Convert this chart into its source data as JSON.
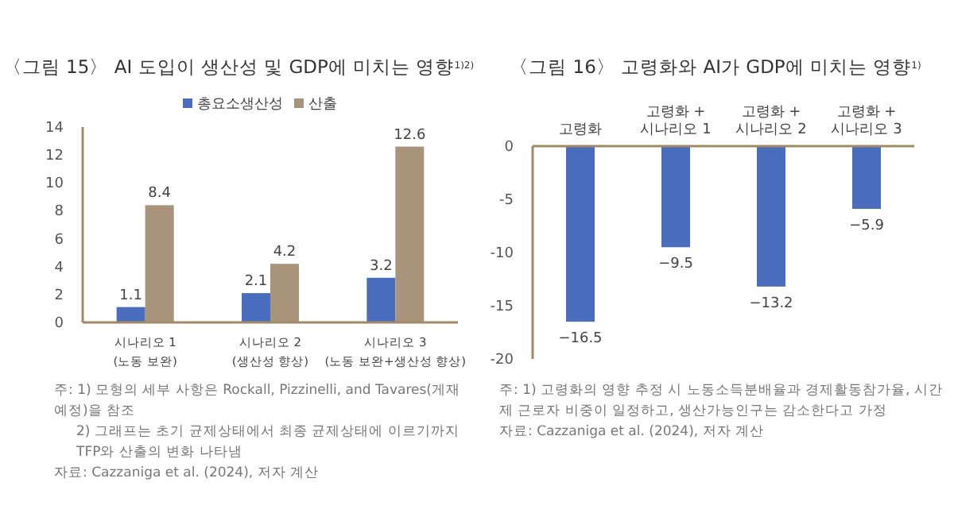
{
  "chart_data": [
    {
      "type": "bar",
      "title": "〈그림 15〉 AI 도입이 생산성 및 GDP에 미치는 영향$^{1)2)}$",
      "categories": [
        "시나리오 1\n(노동 보완)",
        "시나리오 2\n(생산성 향상)",
        "시나리오 3\n(노동 보완+생산성 향상)"
      ],
      "series": [
        {
          "name": "총요소생산성",
          "color": "#4a6dbd",
          "values": [
            1.1,
            2.1,
            3.2
          ]
        },
        {
          "name": "산출",
          "color": "#a8947a",
          "values": [
            8.4,
            4.2,
            12.6
          ]
        }
      ],
      "ylim": [
        0,
        14
      ],
      "yticks": [
        0,
        2,
        4,
        6,
        8,
        10,
        12,
        14
      ],
      "data_labels": true,
      "legend": "top",
      "grid": false,
      "annotations": [
        "주: 1) 모형의 세부 사항은 Rockall, Pizzinelli, and Tavares(게재 예정)을 참조",
        "2) 그래프는 초기 균제상태에서 최종 균제상태에 이르기까지 TFP와 산출의 변화 나타냄",
        "자료: Cazzaniga et al. (2024), 저자 계산"
      ]
    },
    {
      "type": "bar",
      "title": "〈그림 16〉 고령화와 AI가 GDP에 미치는 영향$^{1)}$",
      "categories": [
        "고령화",
        "고령화 +\n시나리오 1",
        "고령화 +\n시나리오 2",
        "고령화 +\n시나리오 3"
      ],
      "series": [
        {
          "color": "#4a6dbd",
          "values": [
            -16.5,
            -9.5,
            -13.2,
            -5.9
          ],
          "value_labels": [
            "−16.5",
            "−9.5",
            "−13.2",
            "−5.9"
          ]
        }
      ],
      "ylim": [
        -20,
        0
      ],
      "yticks": [
        -20,
        -15,
        -10,
        -5,
        0
      ],
      "grid": false,
      "annotations": [
        "주: 1) 고령화의 영향 추정 시 노동소득분배율과 경제활동참가율, 시간제 근로자 비중이 일정하고, 생산가능인구는 감소한다고 가정",
        "자료: Cazzaniga et al. (2024), 저자 계산"
      ]
    }
  ]
}
